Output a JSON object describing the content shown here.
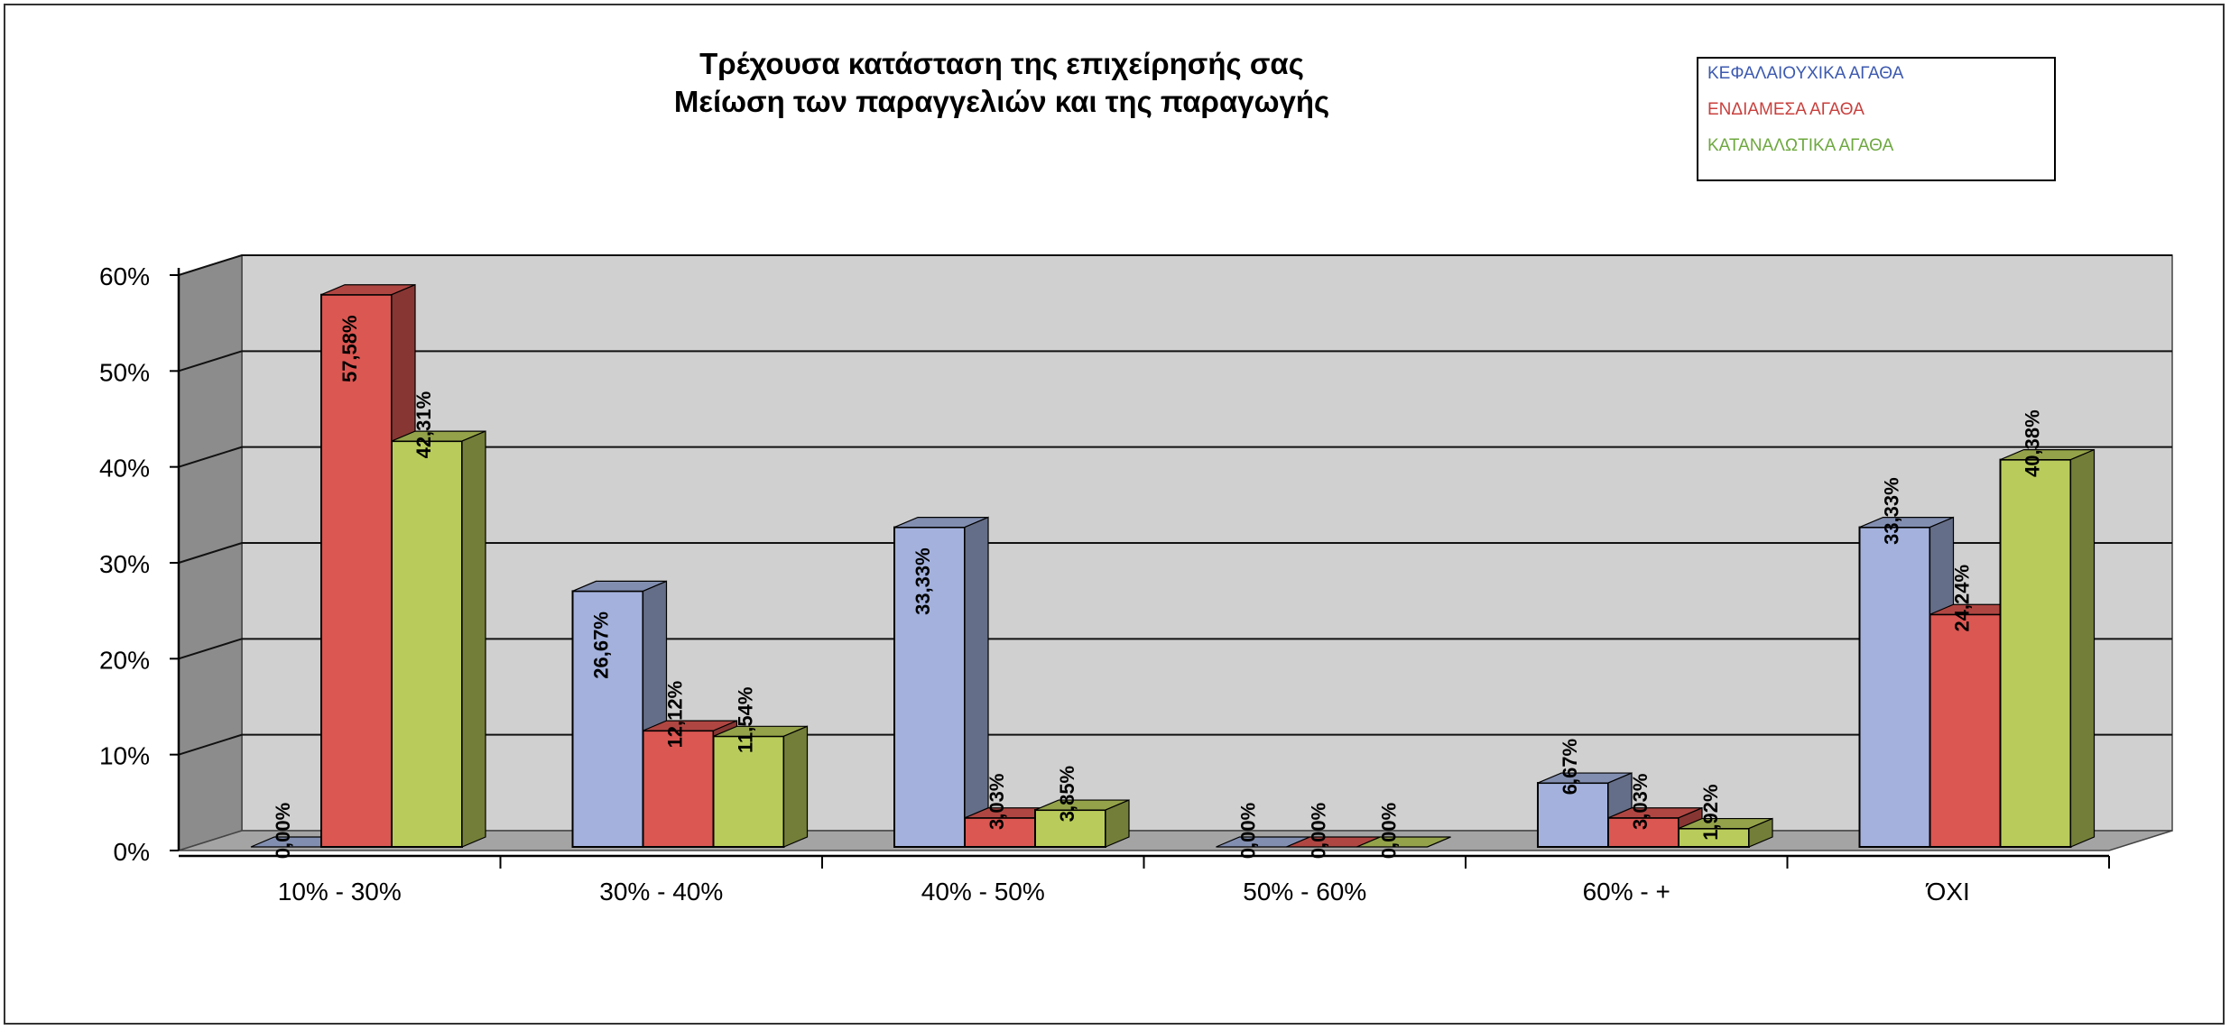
{
  "chart_data": {
    "type": "bar",
    "title": [
      "Τρέχουσα κατάσταση της επιχείρησής σας",
      "Μείωση των παραγγελιών και της παραγωγής"
    ],
    "categories": [
      "10% - 30%",
      "30% - 40%",
      "40% - 50%",
      "50% - 60%",
      "60% - +",
      "ΌΧΙ"
    ],
    "series": [
      {
        "name": "ΚΕΦΑΛΑΙΟΥΧΙΚΑ ΑΓΑΘΑ",
        "values": [
          0.0,
          26.67,
          33.33,
          0.0,
          6.67,
          33.33
        ],
        "labels": [
          "0,00%",
          "26,67%",
          "33,33%",
          "0,00%",
          "6,67%",
          "33,33%"
        ],
        "color": "#a3b1dc"
      },
      {
        "name": "ΕΝΔΙΑΜΕΣΑ ΑΓΑΘΑ",
        "values": [
          57.58,
          12.12,
          3.03,
          0.0,
          3.03,
          24.24
        ],
        "labels": [
          "57,58%",
          "12,12%",
          "3,03%",
          "0,00%",
          "3,03%",
          "24,24%"
        ],
        "color": "#db5752"
      },
      {
        "name": "ΚΑΤΑΝΑΛΩΤΙΚΑ ΑΓΑΘΑ",
        "values": [
          42.31,
          11.54,
          3.85,
          0.0,
          1.92,
          40.38
        ],
        "labels": [
          "42,31%",
          "11,54%",
          "3,85%",
          "0,00%",
          "1,92%",
          "40,38%"
        ],
        "color": "#b9cb5b"
      }
    ],
    "yticks": [
      "0%",
      "10%",
      "20%",
      "30%",
      "40%",
      "50%",
      "60%"
    ],
    "ylim": [
      0,
      60
    ],
    "legend_colors": [
      "#3c59b0",
      "#c8403d",
      "#6ea83f"
    ],
    "grid": true,
    "style": "3d-clustered-column",
    "legend_position": "top-right"
  }
}
